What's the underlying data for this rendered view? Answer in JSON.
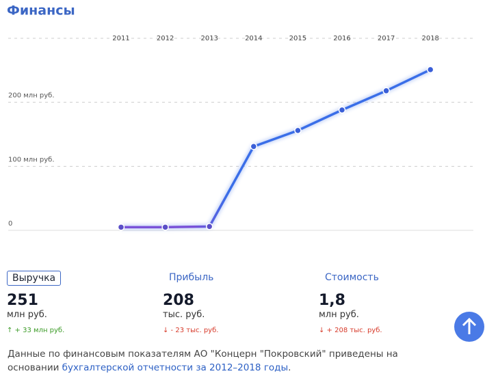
{
  "chart_data": {
    "type": "line",
    "title": "Финансы",
    "categories": [
      "2011",
      "2012",
      "2013",
      "2014",
      "2015",
      "2016",
      "2017",
      "2018"
    ],
    "series": [
      {
        "color": "#3a6ee8",
        "values": [
          5,
          5,
          6,
          131,
          156,
          188,
          218,
          251
        ]
      }
    ],
    "ylim": [
      0,
      300
    ],
    "yticks": [
      0,
      {
        "value": 100,
        "label": "100 млн руб."
      },
      {
        "value": 200,
        "label": "200 млн руб."
      }
    ],
    "grid": true
  },
  "metrics": [
    {
      "label": "Выручка",
      "value": "251",
      "unit": "млн руб.",
      "change": "↑ + 33 млн руб.",
      "trend": "up"
    },
    {
      "label": "Прибыль",
      "value": "208",
      "unit": "тыс. руб.",
      "change": "↓ - 23 тыс. руб.",
      "trend": "down"
    },
    {
      "label": "Стоимость",
      "value": "1,8",
      "unit": "млн руб.",
      "change": "↓ + 208 тыс. руб.",
      "trend": "down"
    }
  ],
  "note": {
    "text": "Данные по финансовым показателям АО \"Концерн \"Покровский\" приведены на основании ",
    "link": "бухгалтерской отчетности за 2012–2018 годы",
    "end": "."
  }
}
